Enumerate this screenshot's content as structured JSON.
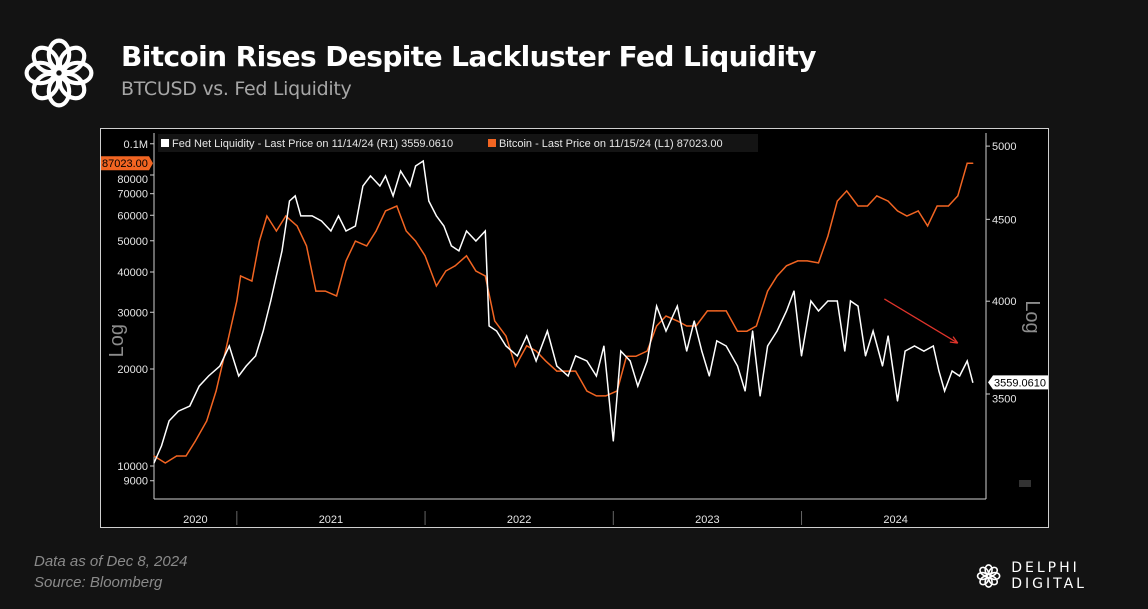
{
  "header": {
    "title": "Bitcoin Rises Despite Lackluster Fed Liquidity",
    "subtitle": "BTCUSD vs. Fed Liquidity"
  },
  "footer": {
    "data_note": "Data as of Dec 8, 2024",
    "source": "Source: Bloomberg",
    "brand": "DELPHI DIGITAL"
  },
  "chart_data": {
    "type": "line",
    "title": "Bitcoin Rises Despite Lackluster Fed Liquidity",
    "legend": [
      {
        "label": "Fed Net Liquidity - Last Price on 11/14/24 (R1) 3559.0610",
        "color": "#ffffff"
      },
      {
        "label": "Bitcoin - Last Price on 11/15/24 (L1) 87023.00",
        "color": "#f26522"
      }
    ],
    "legend_placement": "top-left",
    "x_range": [
      2020.56,
      2024.98
    ],
    "x_ticks": [
      {
        "label": "2020",
        "at": 2020.78
      },
      {
        "label": "2021",
        "at": 2021.5
      },
      {
        "label": "2022",
        "at": 2022.5
      },
      {
        "label": "2023",
        "at": 2023.5
      },
      {
        "label": "2024",
        "at": 2024.5
      }
    ],
    "x_separators": [
      2021,
      2022,
      2023,
      2024
    ],
    "left_axis": {
      "label": "Log",
      "scale": "log",
      "ticks": [
        {
          "v": 100000,
          "label": "0.1M"
        },
        {
          "v": 80000,
          "label": "80000"
        },
        {
          "v": 70000,
          "label": "70000"
        },
        {
          "v": 60000,
          "label": "60000"
        },
        {
          "v": 50000,
          "label": "50000"
        },
        {
          "v": 40000,
          "label": "40000"
        },
        {
          "v": 30000,
          "label": "30000"
        },
        {
          "v": 20000,
          "label": "20000"
        },
        {
          "v": 10000,
          "label": "10000"
        },
        {
          "v": 9000,
          "label": "9000"
        }
      ],
      "last_value_label": "87023.00",
      "last_value": 87023
    },
    "right_axis": {
      "label": "Log",
      "scale": "log",
      "ticks": [
        {
          "v": 5000,
          "label": "5000"
        },
        {
          "v": 4500,
          "label": "4500"
        },
        {
          "v": 4000,
          "label": "4000"
        },
        {
          "v": 3500,
          "label": "3500"
        }
      ],
      "last_value_label": "3559.0610",
      "last_value": 3559.061
    },
    "series": [
      {
        "name": "Bitcoin",
        "axis": "left",
        "color": "#f26522",
        "points": [
          [
            2020.56,
            10740
          ],
          [
            2020.62,
            10220
          ],
          [
            2020.68,
            10740
          ],
          [
            2020.73,
            10740
          ],
          [
            2020.78,
            11960
          ],
          [
            2020.84,
            13790
          ],
          [
            2020.89,
            17090
          ],
          [
            2020.94,
            22750
          ],
          [
            2021.0,
            32500
          ],
          [
            2021.02,
            38870
          ],
          [
            2021.08,
            37500
          ],
          [
            2021.12,
            49900
          ],
          [
            2021.16,
            59700
          ],
          [
            2021.21,
            53600
          ],
          [
            2021.26,
            59700
          ],
          [
            2021.32,
            55600
          ],
          [
            2021.37,
            48200
          ],
          [
            2021.42,
            34900
          ],
          [
            2021.47,
            34900
          ],
          [
            2021.53,
            33700
          ],
          [
            2021.58,
            43300
          ],
          [
            2021.63,
            49900
          ],
          [
            2021.69,
            48200
          ],
          [
            2021.74,
            53600
          ],
          [
            2021.79,
            61900
          ],
          [
            2021.85,
            64100
          ],
          [
            2021.9,
            53600
          ],
          [
            2021.95,
            49900
          ],
          [
            2022.0,
            44900
          ],
          [
            2022.06,
            36200
          ],
          [
            2022.11,
            40300
          ],
          [
            2022.16,
            41800
          ],
          [
            2022.22,
            44900
          ],
          [
            2022.27,
            40300
          ],
          [
            2022.32,
            38870
          ],
          [
            2022.37,
            28200
          ],
          [
            2022.43,
            25300
          ],
          [
            2022.48,
            20400
          ],
          [
            2022.54,
            23600
          ],
          [
            2022.59,
            22750
          ],
          [
            2022.64,
            21200
          ],
          [
            2022.7,
            19700
          ],
          [
            2022.75,
            19700
          ],
          [
            2022.8,
            19700
          ],
          [
            2022.86,
            17090
          ],
          [
            2022.91,
            16500
          ],
          [
            2022.96,
            16500
          ],
          [
            2023.02,
            17090
          ],
          [
            2023.07,
            21900
          ],
          [
            2023.12,
            21900
          ],
          [
            2023.18,
            22750
          ],
          [
            2023.23,
            27200
          ],
          [
            2023.28,
            29200
          ],
          [
            2023.34,
            28200
          ],
          [
            2023.39,
            27200
          ],
          [
            2023.44,
            27200
          ],
          [
            2023.5,
            30300
          ],
          [
            2023.55,
            30300
          ],
          [
            2023.6,
            30300
          ],
          [
            2023.66,
            26200
          ],
          [
            2023.71,
            26200
          ],
          [
            2023.76,
            27200
          ],
          [
            2023.82,
            34900
          ],
          [
            2023.87,
            38870
          ],
          [
            2023.92,
            41800
          ],
          [
            2023.98,
            43300
          ],
          [
            2024.03,
            43300
          ],
          [
            2024.09,
            42700
          ],
          [
            2024.14,
            51700
          ],
          [
            2024.19,
            66400
          ],
          [
            2024.24,
            71400
          ],
          [
            2024.3,
            64100
          ],
          [
            2024.35,
            64100
          ],
          [
            2024.4,
            68900
          ],
          [
            2024.46,
            66400
          ],
          [
            2024.51,
            61900
          ],
          [
            2024.56,
            59700
          ],
          [
            2024.62,
            61900
          ],
          [
            2024.67,
            55600
          ],
          [
            2024.72,
            64100
          ],
          [
            2024.78,
            64100
          ],
          [
            2024.83,
            68900
          ],
          [
            2024.88,
            87023
          ],
          [
            2024.91,
            87023
          ]
        ]
      },
      {
        "name": "Fed Net Liquidity",
        "axis": "right",
        "color": "#ffffff",
        "points": [
          [
            2020.56,
            3169
          ],
          [
            2020.6,
            3248
          ],
          [
            2020.64,
            3367
          ],
          [
            2020.69,
            3415
          ],
          [
            2020.75,
            3440
          ],
          [
            2020.8,
            3540
          ],
          [
            2020.85,
            3592
          ],
          [
            2020.91,
            3644
          ],
          [
            2020.96,
            3750
          ],
          [
            2021.01,
            3592
          ],
          [
            2021.05,
            3644
          ],
          [
            2021.1,
            3697
          ],
          [
            2021.14,
            3832
          ],
          [
            2021.18,
            4001
          ],
          [
            2021.24,
            4300
          ],
          [
            2021.28,
            4620
          ],
          [
            2021.31,
            4654
          ],
          [
            2021.34,
            4522
          ],
          [
            2021.4,
            4522
          ],
          [
            2021.45,
            4489
          ],
          [
            2021.5,
            4425
          ],
          [
            2021.54,
            4522
          ],
          [
            2021.58,
            4425
          ],
          [
            2021.63,
            4457
          ],
          [
            2021.67,
            4721
          ],
          [
            2021.71,
            4790
          ],
          [
            2021.76,
            4721
          ],
          [
            2021.79,
            4790
          ],
          [
            2021.83,
            4654
          ],
          [
            2021.87,
            4824
          ],
          [
            2021.92,
            4721
          ],
          [
            2021.95,
            4859
          ],
          [
            2021.99,
            4894
          ],
          [
            2022.02,
            4620
          ],
          [
            2022.06,
            4522
          ],
          [
            2022.1,
            4457
          ],
          [
            2022.14,
            4331
          ],
          [
            2022.18,
            4300
          ],
          [
            2022.22,
            4425
          ],
          [
            2022.27,
            4362
          ],
          [
            2022.32,
            4425
          ],
          [
            2022.34,
            3860
          ],
          [
            2022.38,
            3832
          ],
          [
            2022.43,
            3750
          ],
          [
            2022.49,
            3697
          ],
          [
            2022.54,
            3805
          ],
          [
            2022.59,
            3670
          ],
          [
            2022.65,
            3832
          ],
          [
            2022.7,
            3644
          ],
          [
            2022.76,
            3592
          ],
          [
            2022.8,
            3697
          ],
          [
            2022.86,
            3670
          ],
          [
            2022.91,
            3592
          ],
          [
            2022.95,
            3750
          ],
          [
            2023.0,
            3271
          ],
          [
            2023.04,
            3723
          ],
          [
            2023.09,
            3670
          ],
          [
            2023.13,
            3540
          ],
          [
            2023.18,
            3670
          ],
          [
            2023.23,
            3972
          ],
          [
            2023.28,
            3832
          ],
          [
            2023.34,
            3972
          ],
          [
            2023.39,
            3723
          ],
          [
            2023.43,
            3888
          ],
          [
            2023.47,
            3723
          ],
          [
            2023.51,
            3592
          ],
          [
            2023.55,
            3778
          ],
          [
            2023.6,
            3750
          ],
          [
            2023.66,
            3644
          ],
          [
            2023.7,
            3515
          ],
          [
            2023.74,
            3832
          ],
          [
            2023.78,
            3490
          ],
          [
            2023.82,
            3750
          ],
          [
            2023.87,
            3832
          ],
          [
            2023.92,
            3944
          ],
          [
            2023.96,
            4059
          ],
          [
            2024.0,
            3697
          ],
          [
            2024.05,
            4001
          ],
          [
            2024.09,
            3944
          ],
          [
            2024.14,
            4001
          ],
          [
            2024.19,
            4001
          ],
          [
            2024.23,
            3723
          ],
          [
            2024.26,
            4001
          ],
          [
            2024.3,
            3972
          ],
          [
            2024.34,
            3697
          ],
          [
            2024.38,
            3832
          ],
          [
            2024.43,
            3644
          ],
          [
            2024.46,
            3805
          ],
          [
            2024.51,
            3465
          ],
          [
            2024.55,
            3723
          ],
          [
            2024.6,
            3750
          ],
          [
            2024.65,
            3723
          ],
          [
            2024.7,
            3750
          ],
          [
            2024.73,
            3618
          ],
          [
            2024.76,
            3515
          ],
          [
            2024.8,
            3618
          ],
          [
            2024.84,
            3592
          ],
          [
            2024.88,
            3670
          ],
          [
            2024.91,
            3559
          ]
        ]
      }
    ],
    "annotations": [
      {
        "type": "arrow",
        "color": "#e0342b",
        "axis": "right",
        "from": [
          2024.44,
          4013
        ],
        "to": [
          2024.83,
          3766
        ]
      }
    ]
  }
}
